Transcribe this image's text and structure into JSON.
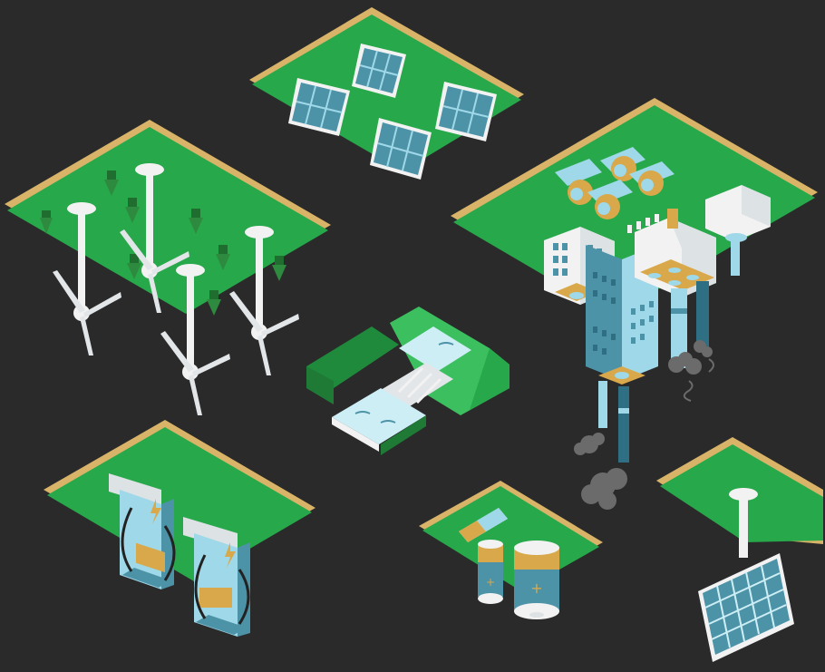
{
  "scene": {
    "background": "#2a2a2a",
    "colors": {
      "grass": "#27a84a",
      "grass_light": "#3cbf5e",
      "grass_dark": "#1f8a3c",
      "edge": "#d9b468",
      "edge_dark": "#b58f45",
      "white": "#f2f2f2",
      "shade": "#c9cfd3",
      "steel_blue": "#4d93a8",
      "light_blue": "#9fd8e8",
      "pale_blue": "#cdeef5",
      "gold": "#d9a84a",
      "smoke": "#6b6b6b",
      "tree": "#2e8a3f"
    },
    "icons": [
      {
        "name": "wind-farm-island-icon"
      },
      {
        "name": "solar-farm-island-icon"
      },
      {
        "name": "power-plant-island-icon"
      },
      {
        "name": "hydro-dam-icon"
      },
      {
        "name": "ev-charging-island-icon"
      },
      {
        "name": "battery-island-icon"
      },
      {
        "name": "solar-panel-island-icon"
      }
    ],
    "battery_symbol": "+"
  }
}
